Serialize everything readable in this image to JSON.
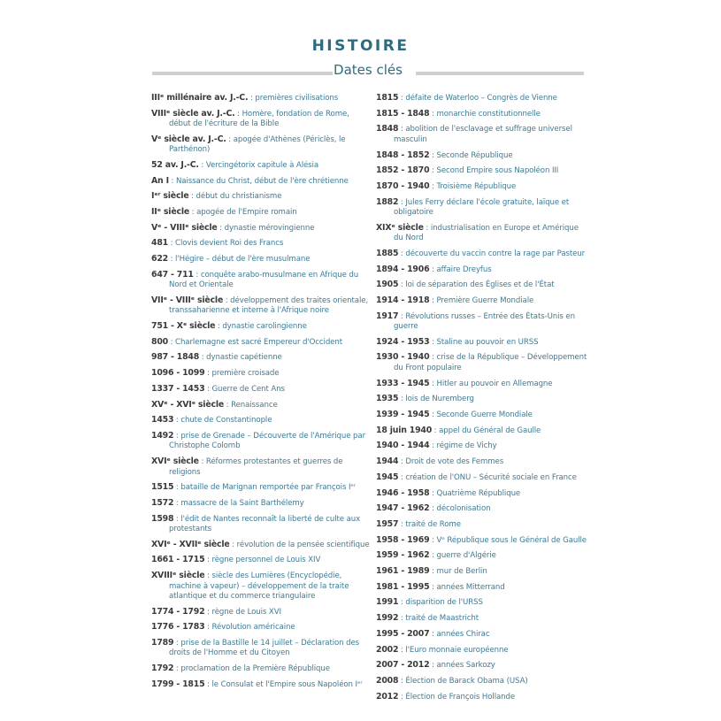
{
  "header": {
    "title": "HISTOIRE",
    "subtitle": "Dates clés"
  },
  "colors": {
    "accent": "#2e6b7e",
    "text": "#3f7a93",
    "date": "#3a3a3a",
    "rule": "#cfcfcf"
  },
  "left_column": [
    {
      "date": "IIIᵉ millénaire av. J.-C.",
      "text": "premières civilisations"
    },
    {
      "date": "VIIIᵉ siècle av. J.-C.",
      "text": "Homère, fondation de Rome, début de l'écriture de la Bible"
    },
    {
      "date": "Vᵉ siècle av. J.-C.",
      "text": "apogée d'Athènes (Périclès, le Parthénon)"
    },
    {
      "date": "52 av. J.-C.",
      "text": "Vercingétorix capitule à Alésia"
    },
    {
      "date": "An I",
      "text": "Naissance du Christ, début de l'ère chrétienne"
    },
    {
      "date": "Iᵉʳ siècle",
      "text": "début du christianisme"
    },
    {
      "date": "IIᵉ siècle",
      "text": "apogée de l'Empire romain"
    },
    {
      "date": "Vᵉ - VIIIᵉ siècle",
      "text": "dynastie mérovingienne"
    },
    {
      "date": "481",
      "text": "Clovis devient Roi des Francs"
    },
    {
      "date": "622",
      "text": "l'Hégire – début de l'ère musulmane"
    },
    {
      "date": "647 - 711",
      "text": "conquête arabo-musulmane en Afrique du Nord et Orientale"
    },
    {
      "date": "VIIᵉ - VIIIᵉ siècle",
      "text": "développement des traites orientale, transsaharienne et interne à l'Afrique noire"
    },
    {
      "date": "751 - Xᵉ siècle",
      "text": "dynastie carolingienne"
    },
    {
      "date": "800",
      "text": "Charlemagne est sacré Empereur d'Occident"
    },
    {
      "date": "987 - 1848",
      "text": "dynastie capétienne"
    },
    {
      "date": "1096 - 1099",
      "text": "première croisade"
    },
    {
      "date": "1337 - 1453",
      "text": "Guerre de Cent Ans"
    },
    {
      "date": "XVᵉ - XVIᵉ siècle",
      "text": "Renaissance"
    },
    {
      "date": "1453",
      "text": "chute de Constantinople"
    },
    {
      "date": "1492",
      "text": "prise de Grenade – Découverte de l'Amérique par Christophe Colomb"
    },
    {
      "date": "XVIᵉ siècle",
      "text": "Réformes protestantes et guerres de religions"
    },
    {
      "date": "1515",
      "text": "bataille de Marignan remportée par François Iᵉʳ"
    },
    {
      "date": "1572",
      "text": "massacre de la Saint Barthélemy"
    },
    {
      "date": "1598",
      "text": "l'édit de Nantes reconnaît la liberté de culte aux protestants"
    },
    {
      "date": "XVIᵉ - XVIIᵉ siècle",
      "text": "révolution de la pensée scientifique"
    },
    {
      "date": "1661 - 1715",
      "text": "règne personnel de Louis XIV"
    },
    {
      "date": "XVIIIᵉ siècle",
      "text": "siècle des Lumières (Encyclopédie, machine à vapeur) – développement de la traite atlantique et du commerce triangulaire"
    },
    {
      "date": "1774 - 1792",
      "text": "règne de Louis XVI"
    },
    {
      "date": "1776 - 1783",
      "text": "Révolution américaine"
    },
    {
      "date": "1789",
      "text": "prise de la Bastille le 14 juillet – Déclaration des droits de l'Homme et du Citoyen"
    },
    {
      "date": "1792",
      "text": "proclamation de la Première République"
    },
    {
      "date": "1799 - 1815",
      "text": "le Consulat et l'Empire sous Napoléon Iᵉʳ"
    }
  ],
  "right_column": [
    {
      "date": "1815",
      "text": "défaite de Waterloo – Congrès de Vienne"
    },
    {
      "date": "1815 - 1848",
      "text": "monarchie constitutionnelle"
    },
    {
      "date": "1848",
      "text": "abolition de l'esclavage et suffrage universel masculin"
    },
    {
      "date": "1848 - 1852",
      "text": "Seconde République"
    },
    {
      "date": "1852 - 1870",
      "text": "Second Empire sous Napoléon III"
    },
    {
      "date": "1870 - 1940",
      "text": "Troisième République"
    },
    {
      "date": "1882",
      "text": "Jules Ferry déclare l'école gratuite, laïque et obligatoire"
    },
    {
      "date": "XIXᵉ siècle",
      "text": "industrialisation en Europe et Amérique du Nord"
    },
    {
      "date": "1885",
      "text": "découverte du vaccin contre la rage par Pasteur"
    },
    {
      "date": "1894 - 1906",
      "text": "affaire Dreyfus"
    },
    {
      "date": "1905",
      "text": "loi de séparation des Églises et de l'État"
    },
    {
      "date": "1914 - 1918",
      "text": "Première Guerre Mondiale"
    },
    {
      "date": "1917",
      "text": "Révolutions russes – Entrée des États-Unis en guerre"
    },
    {
      "date": "1924 - 1953",
      "text": "Staline au pouvoir en URSS"
    },
    {
      "date": "1930 - 1940",
      "text": "crise de la République – Développement du Front populaire"
    },
    {
      "date": "1933 - 1945",
      "text": "Hitler au pouvoir en Allemagne"
    },
    {
      "date": "1935",
      "text": "lois de Nuremberg"
    },
    {
      "date": "1939 - 1945",
      "text": "Seconde Guerre Mondiale"
    },
    {
      "date": "18 juin 1940",
      "text": "appel du Général de Gaulle"
    },
    {
      "date": "1940 - 1944",
      "text": "régime de Vichy"
    },
    {
      "date": "1944",
      "text": "Droit de vote des Femmes"
    },
    {
      "date": "1945",
      "text": "création de l'ONU – Sécurité sociale en France"
    },
    {
      "date": "1946 - 1958",
      "text": "Quatrième République"
    },
    {
      "date": "1947 - 1962",
      "text": "décolonisation"
    },
    {
      "date": "1957",
      "text": "traité de Rome"
    },
    {
      "date": "1958 - 1969",
      "text": "Vᵉ République sous le Général de Gaulle"
    },
    {
      "date": "1959 - 1962",
      "text": "guerre d'Algérie"
    },
    {
      "date": "1961 - 1989",
      "text": "mur de Berlin"
    },
    {
      "date": "1981 - 1995",
      "text": "années Mitterrand"
    },
    {
      "date": "1991",
      "text": "disparition de l'URSS"
    },
    {
      "date": "1992",
      "text": "traité de Maastricht"
    },
    {
      "date": "1995 - 2007",
      "text": "années Chirac"
    },
    {
      "date": "2002",
      "text": "l'Euro monnaie européenne"
    },
    {
      "date": "2007 - 2012",
      "text": "années Sarkozy"
    },
    {
      "date": "2008",
      "text": "Élection de Barack Obama (USA)"
    },
    {
      "date": "2012",
      "text": "Élection de François Hollande"
    }
  ]
}
